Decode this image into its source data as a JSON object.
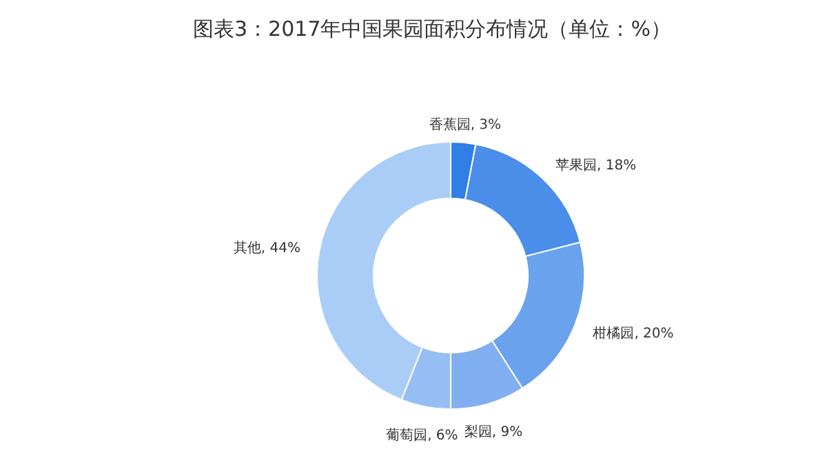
{
  "chart_data": {
    "type": "donut",
    "title": "图表3：2017年中国果园面积分布情况（单位：%）",
    "categories": [
      "香蕉园",
      "苹果园",
      "柑橘园",
      "梨园",
      "葡萄园",
      "其他"
    ],
    "values": [
      3,
      18,
      20,
      9,
      6,
      44
    ],
    "value_labels": [
      "3%",
      "18%",
      "20%",
      "9%",
      "6%",
      "44%"
    ],
    "colors": [
      "#2f7fe6",
      "#4b8ee9",
      "#6aa2ee",
      "#80b0f1",
      "#95bef4",
      "#aacdf7"
    ]
  }
}
